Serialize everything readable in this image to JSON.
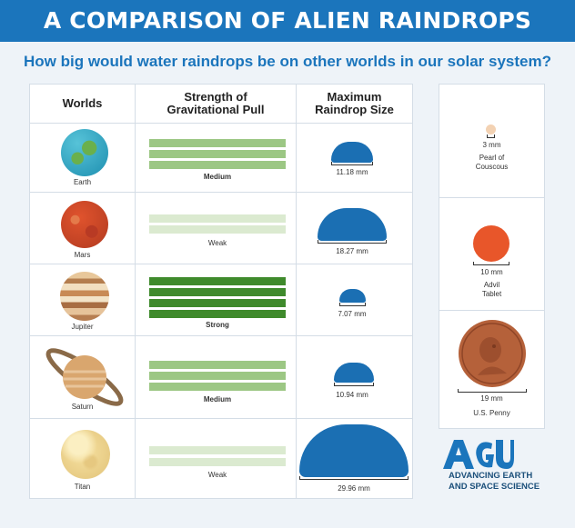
{
  "header": {
    "title": "A COMPARISON OF ALIEN RAINDROPS"
  },
  "subtitle": "How big would water raindrops be on other worlds in our solar system?",
  "table": {
    "columns": [
      "Worlds",
      "Strength of\nGravitational Pull",
      "Maximum\nRaindrop Size"
    ],
    "rows": [
      {
        "world": "Earth",
        "strength": "Medium",
        "strength_level": 2,
        "drop_mm": 11.18,
        "drop_label": "11.18 mm"
      },
      {
        "world": "Mars",
        "strength": "Weak",
        "strength_level": 1,
        "drop_mm": 18.27,
        "drop_label": "18.27 mm"
      },
      {
        "world": "Jupiter",
        "strength": "Strong",
        "strength_level": 3,
        "drop_mm": 7.07,
        "drop_label": "7.07 mm"
      },
      {
        "world": "Saturn",
        "strength": "Medium",
        "strength_level": 2,
        "drop_mm": 10.94,
        "drop_label": "10.94 mm"
      },
      {
        "world": "Titan",
        "strength": "Weak",
        "strength_level": 1,
        "drop_mm": 29.96,
        "drop_label": "29.96 mm"
      }
    ]
  },
  "comparisons": [
    {
      "size_label": "3 mm",
      "name": "Pearl of\nCouscous",
      "size_mm": 3
    },
    {
      "size_label": "10 mm",
      "name": "Advil\nTablet",
      "size_mm": 10
    },
    {
      "size_label": "19 mm",
      "name": "U.S. Penny",
      "size_mm": 19
    }
  ],
  "logo": {
    "name": "AGU",
    "tagline": "ADVANCING EARTH\nAND SPACE SCIENCE"
  },
  "colors": {
    "header_blue": "#1b75bc",
    "drop_blue": "#1b6fb3",
    "bar_strong": "#3f8a2c",
    "bar_medium": "#9cc784",
    "bar_weak": "#dbead0",
    "advil_orange": "#e8562a",
    "penny_copper": "#b5613a",
    "couscous": "#f3d2b3"
  }
}
